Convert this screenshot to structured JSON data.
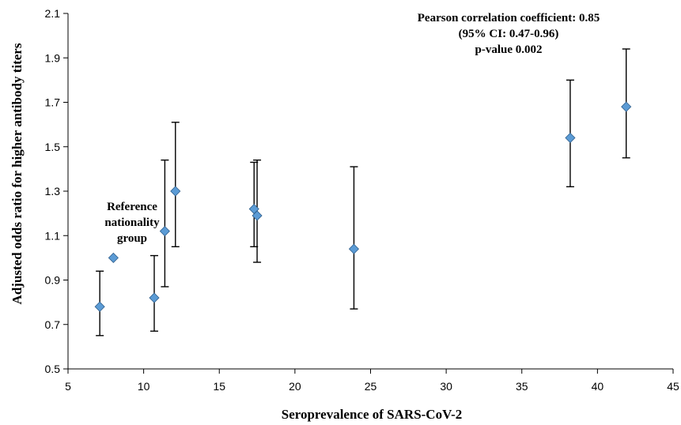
{
  "chart_data": {
    "type": "scatter",
    "xlabel": "Seroprevalence of SARS-CoV-2",
    "ylabel": "Adjusted odds ratio for higher antibody titers",
    "xlim": [
      5,
      45
    ],
    "ylim": [
      0.5,
      2.1
    ],
    "xticks": [
      "5",
      "10",
      "15",
      "20",
      "25",
      "30",
      "35",
      "40",
      "45"
    ],
    "yticks": [
      "0.5",
      "0.7",
      "0.9",
      "1.1",
      "1.3",
      "1.5",
      "1.7",
      "1.9",
      "2.1"
    ],
    "grid": false,
    "marker_color": "#5b9bd5",
    "marker_edge_color": "#2e5d8a",
    "points": [
      {
        "x": 7.1,
        "y": 0.78,
        "lo": 0.65,
        "hi": 0.94
      },
      {
        "x": 8.0,
        "y": 1.0
      },
      {
        "x": 10.7,
        "y": 0.82,
        "lo": 0.67,
        "hi": 1.01
      },
      {
        "x": 11.4,
        "y": 1.12,
        "lo": 0.87,
        "hi": 1.44
      },
      {
        "x": 12.1,
        "y": 1.3,
        "lo": 1.05,
        "hi": 1.61
      },
      {
        "x": 17.3,
        "y": 1.22,
        "lo": 1.05,
        "hi": 1.43
      },
      {
        "x": 17.5,
        "y": 1.19,
        "lo": 0.98,
        "hi": 1.44
      },
      {
        "x": 23.9,
        "y": 1.04,
        "lo": 0.77,
        "hi": 1.41
      },
      {
        "x": 38.2,
        "y": 1.54,
        "lo": 1.32,
        "hi": 1.8
      },
      {
        "x": 41.9,
        "y": 1.68,
        "lo": 1.45,
        "hi": 1.94
      }
    ],
    "annotations": {
      "reference": [
        "Reference",
        "nationality",
        "group"
      ],
      "stats": [
        "Pearson correlation coefficient: 0.85",
        "(95% CI: 0.47-0.96)",
        "p-value 0.002"
      ]
    }
  }
}
